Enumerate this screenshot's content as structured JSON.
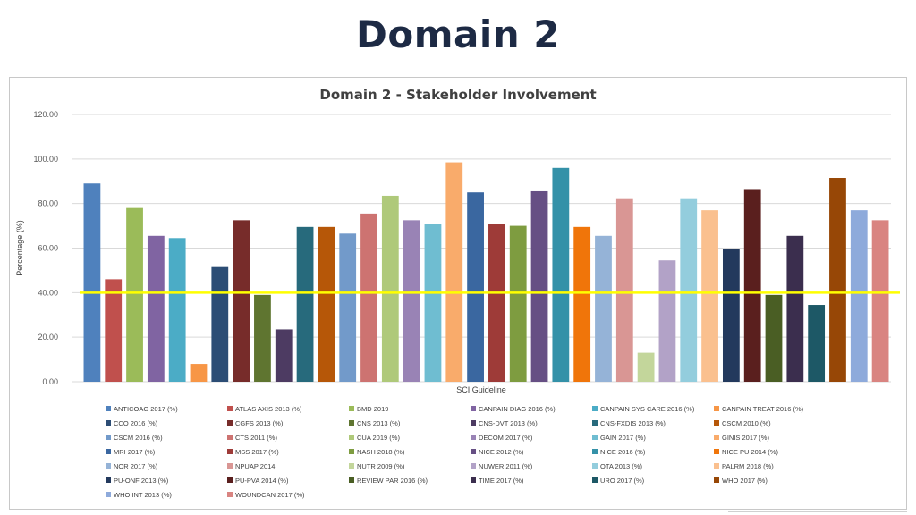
{
  "slide_title": "Domain 2",
  "chart_data": {
    "type": "bar",
    "title": "Domain 2 - Stakeholder Involvement",
    "xlabel": "SCI Guideline",
    "ylabel": "Percentage (%)",
    "ylim": [
      0,
      120
    ],
    "yticks": [
      "0.00",
      "20.00",
      "40.00",
      "60.00",
      "80.00",
      "100.00",
      "120.00"
    ],
    "threshold": {
      "value": 40,
      "color": "#ffff00"
    },
    "grid": true,
    "legend_position": "bottom",
    "series": [
      {
        "name": "ANTICOAG 2017 (%)",
        "value": 89,
        "color": "#4f81bd"
      },
      {
        "name": "ATLAS AXIS 2013 (%)",
        "value": 46,
        "color": "#c0504d"
      },
      {
        "name": "BMD 2019",
        "value": 78,
        "color": "#9bbb59"
      },
      {
        "name": "CANPAIN DIAG 2016 (%)",
        "value": 65.5,
        "color": "#8064a2"
      },
      {
        "name": "CANPAIN SYS CARE 2016 (%)",
        "value": 64.5,
        "color": "#4bacc6"
      },
      {
        "name": "CANPAIN TREAT 2016 (%)",
        "value": 8,
        "color": "#f79646"
      },
      {
        "name": "CCO 2016 (%)",
        "value": 51.5,
        "color": "#2c4d75"
      },
      {
        "name": "CGFS 2013 (%)",
        "value": 72.5,
        "color": "#772c2a"
      },
      {
        "name": "CNS 2013 (%)",
        "value": 39,
        "color": "#5f7530"
      },
      {
        "name": "CNS-DVT 2013 (%)",
        "value": 23.5,
        "color": "#4d3b62"
      },
      {
        "name": "CNS-FXDIS 2013 (%)",
        "value": 69.5,
        "color": "#276a7c"
      },
      {
        "name": "CSCM 2010 (%)",
        "value": 69.5,
        "color": "#b65708"
      },
      {
        "name": "CSCM 2016 (%)",
        "value": 66.5,
        "color": "#729aca"
      },
      {
        "name": "CTS 2011 (%)",
        "value": 75.5,
        "color": "#cd7371"
      },
      {
        "name": "CUA 2019 (%)",
        "value": 83.5,
        "color": "#afc97a"
      },
      {
        "name": "DECOM 2017 (%)",
        "value": 72.5,
        "color": "#9983b5"
      },
      {
        "name": "GAIN 2017 (%)",
        "value": 71,
        "color": "#6fbdd1"
      },
      {
        "name": "GINIS 2017 (%)",
        "value": 98.5,
        "color": "#f9ab6b"
      },
      {
        "name": "MRI 2017 (%)",
        "value": 85,
        "color": "#3a67a0"
      },
      {
        "name": "MSS 2017 (%)",
        "value": 71,
        "color": "#9e3b38"
      },
      {
        "name": "NASH 2018 (%)",
        "value": 70,
        "color": "#7e9c40"
      },
      {
        "name": "NICE 2012 (%)",
        "value": 85.5,
        "color": "#664f84"
      },
      {
        "name": "NICE 2016 (%)",
        "value": 96,
        "color": "#3491a8"
      },
      {
        "name": "NICE PU 2014 (%)",
        "value": 69.5,
        "color": "#f0750a"
      },
      {
        "name": "NOR 2017 (%)",
        "value": 65.5,
        "color": "#95b3d7"
      },
      {
        "name": "NPUAP 2014",
        "value": 82,
        "color": "#d99694"
      },
      {
        "name": "NUTR 2009 (%)",
        "value": 13,
        "color": "#c3d69b"
      },
      {
        "name": "NUWER 2011 (%)",
        "value": 54.5,
        "color": "#b2a2c7"
      },
      {
        "name": "OTA 2013 (%)",
        "value": 82,
        "color": "#93cddd"
      },
      {
        "name": "PALRM 2018 (%)",
        "value": 77,
        "color": "#fac08f"
      },
      {
        "name": "PU-ONF 2013 (%)",
        "value": 59.5,
        "color": "#23395d"
      },
      {
        "name": "PU-PVA 2014 (%)",
        "value": 86.5,
        "color": "#5a1f1e"
      },
      {
        "name": "REVIEW PAR 2016 (%)",
        "value": 39,
        "color": "#4a5e24"
      },
      {
        "name": "TIME 2017 (%)",
        "value": 65.5,
        "color": "#3b2e4e"
      },
      {
        "name": "URO 2017 (%)",
        "value": 34.5,
        "color": "#1d5866"
      },
      {
        "name": "WHO 2017 (%)",
        "value": 91.5,
        "color": "#974706"
      },
      {
        "name": "WHO INT 2013 (%)",
        "value": 77,
        "color": "#8eaadb"
      },
      {
        "name": "WOUNDCAN 2017 (%)",
        "value": 72.5,
        "color": "#d98481"
      }
    ]
  }
}
